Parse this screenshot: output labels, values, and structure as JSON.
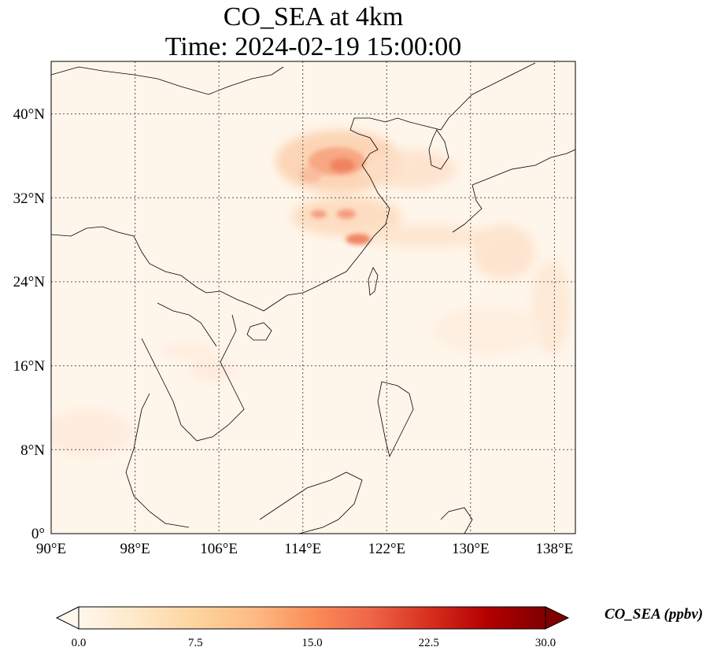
{
  "title": {
    "line1": "CO_SEA at 4km",
    "line2": "Time: 2024-02-19 15:00:00"
  },
  "map": {
    "projection": "PlateCarree",
    "lon_range": [
      90,
      140
    ],
    "lat_range": [
      0,
      45
    ],
    "lon_ticks": [
      "90°E",
      "98°E",
      "106°E",
      "114°E",
      "122°E",
      "130°E",
      "138°E"
    ],
    "lat_ticks": [
      "0°",
      "8°N",
      "16°N",
      "24°N",
      "32°N",
      "40°N"
    ],
    "gridlines": "dotted",
    "coastlines": true,
    "borders": true
  },
  "colorbar": {
    "label": "CO_SEA (ppbv)",
    "colormap": "OrRd",
    "extend": "both",
    "range": [
      0,
      30
    ],
    "ticks": [
      "0.0",
      "7.5",
      "15.0",
      "22.5",
      "30.0"
    ],
    "colors": [
      "#fff7ec",
      "#fee8c8",
      "#fdd49e",
      "#fdbb84",
      "#fc8d59",
      "#ef6548",
      "#d7301f",
      "#b30000",
      "#7f0000"
    ]
  }
}
